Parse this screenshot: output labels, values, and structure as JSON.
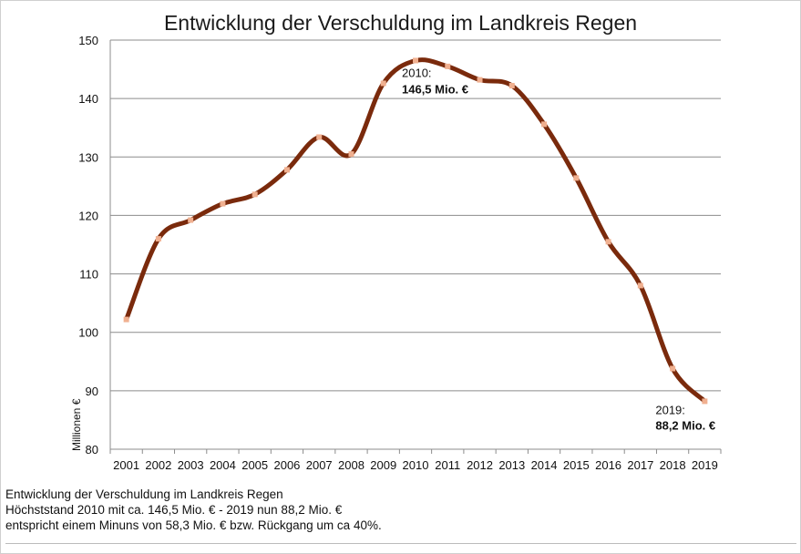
{
  "chart_data": {
    "type": "line",
    "title": "Entwicklung der Verschuldung im Landkreis Regen",
    "xlabel": "",
    "ylabel": "Millionen €",
    "ylim": [
      80,
      150
    ],
    "yticks": [
      80,
      90,
      100,
      110,
      120,
      130,
      140,
      150
    ],
    "grid": true,
    "smooth": true,
    "line_color": "#7a2a0c",
    "marker_color": "#f0b090",
    "categories": [
      "2001",
      "2002",
      "2003",
      "2004",
      "2005",
      "2006",
      "2007",
      "2008",
      "2009",
      "2010",
      "2011",
      "2012",
      "2013",
      "2014",
      "2015",
      "2016",
      "2017",
      "2018",
      "2019"
    ],
    "series": [
      {
        "values": [
          102.2,
          116.0,
          119.2,
          122.0,
          123.6,
          127.8,
          133.4,
          130.5,
          142.6,
          146.5,
          145.5,
          143.2,
          142.2,
          135.6,
          126.4,
          115.5,
          108.0,
          93.8,
          88.2
        ]
      }
    ],
    "annotations": [
      {
        "category": "2010",
        "line1": "2010:",
        "line2": "146,5 Mio. €"
      },
      {
        "category": "2019",
        "line1": "2019:",
        "line2": "88,2 Mio. €"
      }
    ]
  },
  "footnote": {
    "line1": "Entwicklung der Verschuldung im Landkreis Regen",
    "line2": "Höchststand 2010 mit ca. 146,5 Mio. € - 2019 nun 88,2 Mio. €",
    "line3": "entspricht einem Minuns von 58,3 Mio. € bzw. Rückgang um ca 40%."
  }
}
